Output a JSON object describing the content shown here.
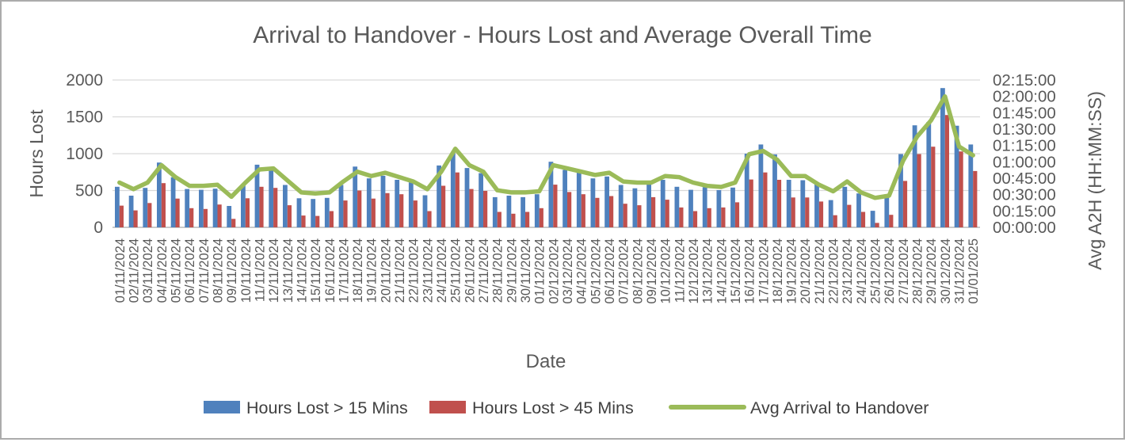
{
  "title": "Arrival to Handover - Hours Lost and Average Overall Time",
  "axes": {
    "left": {
      "title": "Hours Lost",
      "ticks": [
        0,
        500,
        1000,
        1500,
        2000
      ],
      "max": 2000
    },
    "right": {
      "title": "Avg A2H (HH:MM:SS)",
      "ticks": [
        "00:00:00",
        "00:15:00",
        "00:30:00",
        "00:45:00",
        "01:00:00",
        "01:15:00",
        "01:30:00",
        "01:45:00",
        "02:00:00",
        "02:15:00"
      ],
      "max": "02:15:00"
    },
    "x": {
      "title": "Date"
    }
  },
  "legend": [
    {
      "label": "Hours Lost > 15 Mins",
      "color": "#4F81BD",
      "type": "bar"
    },
    {
      "label": "Hours Lost > 45 Mins",
      "color": "#C0504D",
      "type": "bar"
    },
    {
      "label": "Avg Arrival to Handover",
      "color": "#9BBB59",
      "type": "line"
    }
  ],
  "colors": {
    "bar_blue": "#4F81BD",
    "bar_red": "#C0504D",
    "line_green": "#9BBB59",
    "gridline": "#D9D9D9",
    "axis_line": "#ABABAB",
    "text_gray": "#595959"
  },
  "chart_data": {
    "type": "bar",
    "subtype": "grouped-bars-with-line-on-secondary-axis",
    "title": "Arrival to Handover - Hours Lost and Average Overall Time",
    "xlabel": "Date",
    "ylabel": "Hours Lost",
    "ylabel_right": "Avg A2H (HH:MM:SS)",
    "ylim": [
      0,
      2000
    ],
    "ylim_right": [
      "00:00:00",
      "02:15:00"
    ],
    "grid": true,
    "legend_position": "bottom",
    "categories": [
      "01/11/2024",
      "02/11/2024",
      "03/11/2024",
      "04/11/2024",
      "05/11/2024",
      "06/11/2024",
      "07/11/2024",
      "08/11/2024",
      "09/11/2024",
      "10/11/2024",
      "11/11/2024",
      "12/11/2024",
      "13/11/2024",
      "14/11/2024",
      "15/11/2024",
      "16/11/2024",
      "17/11/2024",
      "18/11/2024",
      "19/11/2024",
      "20/11/2024",
      "21/11/2024",
      "22/11/2024",
      "23/11/2024",
      "24/11/2024",
      "25/11/2024",
      "26/11/2024",
      "27/11/2024",
      "28/11/2024",
      "29/11/2024",
      "30/11/2024",
      "01/12/2024",
      "02/12/2024",
      "03/12/2024",
      "04/12/2024",
      "05/12/2024",
      "06/12/2024",
      "07/12/2024",
      "08/12/2024",
      "09/12/2024",
      "10/12/2024",
      "11/12/2024",
      "12/12/2024",
      "13/12/2024",
      "14/12/2024",
      "15/12/2024",
      "16/12/2024",
      "17/12/2024",
      "18/12/2024",
      "19/12/2024",
      "20/12/2024",
      "21/12/2024",
      "22/12/2024",
      "23/12/2024",
      "24/12/2024",
      "25/12/2024",
      "26/12/2024",
      "27/12/2024",
      "28/12/2024",
      "29/12/2024",
      "30/12/2024",
      "31/12/2024",
      "01/01/2025"
    ],
    "series": [
      {
        "name": "Hours Lost > 15 Mins",
        "type": "bar",
        "axis": "left",
        "color": "#4F81BD",
        "values": [
          550,
          430,
          535,
          880,
          680,
          520,
          510,
          525,
          290,
          565,
          850,
          800,
          575,
          395,
          385,
          400,
          575,
          825,
          665,
          700,
          645,
          610,
          435,
          840,
          1010,
          805,
          735,
          410,
          430,
          410,
          450,
          890,
          780,
          755,
          665,
          690,
          575,
          530,
          610,
          645,
          550,
          510,
          545,
          505,
          540,
          1000,
          1125,
          990,
          645,
          640,
          590,
          370,
          550,
          460,
          225,
          450,
          995,
          1385,
          1430,
          1890,
          1380,
          1125
        ]
      },
      {
        "name": "Hours Lost > 45 Mins",
        "type": "bar",
        "axis": "left",
        "color": "#C0504D",
        "values": [
          295,
          230,
          330,
          600,
          390,
          260,
          250,
          310,
          115,
          395,
          550,
          535,
          300,
          160,
          155,
          220,
          365,
          500,
          390,
          465,
          450,
          365,
          220,
          565,
          745,
          520,
          495,
          210,
          185,
          210,
          260,
          580,
          480,
          450,
          400,
          425,
          320,
          300,
          410,
          375,
          270,
          220,
          260,
          270,
          340,
          650,
          745,
          645,
          405,
          405,
          350,
          165,
          305,
          210,
          60,
          170,
          630,
          995,
          1095,
          1525,
          1030,
          765
        ]
      },
      {
        "name": "Avg Arrival to Handover",
        "type": "line",
        "axis": "right",
        "color": "#9BBB59",
        "values": [
          "00:41:00",
          "00:35:00",
          "00:41:00",
          "00:57:00",
          "00:46:00",
          "00:38:00",
          "00:38:00",
          "00:39:00",
          "00:28:00",
          "00:41:00",
          "00:53:00",
          "00:54:00",
          "00:43:00",
          "00:32:00",
          "00:31:00",
          "00:32:00",
          "00:42:00",
          "00:51:00",
          "00:47:00",
          "00:50:00",
          "00:46:00",
          "00:42:00",
          "00:35:00",
          "00:51:00",
          "01:12:00",
          "00:57:00",
          "00:51:00",
          "00:34:00",
          "00:32:00",
          "00:32:00",
          "00:33:00",
          "00:57:00",
          "00:54:00",
          "00:51:00",
          "00:48:00",
          "00:50:00",
          "00:42:00",
          "00:41:00",
          "00:41:00",
          "00:47:00",
          "00:46:00",
          "00:41:00",
          "00:38:00",
          "00:37:00",
          "00:41:00",
          "01:07:00",
          "01:10:00",
          "01:02:00",
          "00:47:00",
          "00:47:00",
          "00:39:00",
          "00:33:00",
          "00:42:00",
          "00:32:00",
          "00:27:00",
          "00:29:00",
          "01:01:00",
          "01:23:00",
          "01:38:00",
          "02:00:00",
          "01:14:00",
          "01:06:00"
        ]
      }
    ]
  }
}
